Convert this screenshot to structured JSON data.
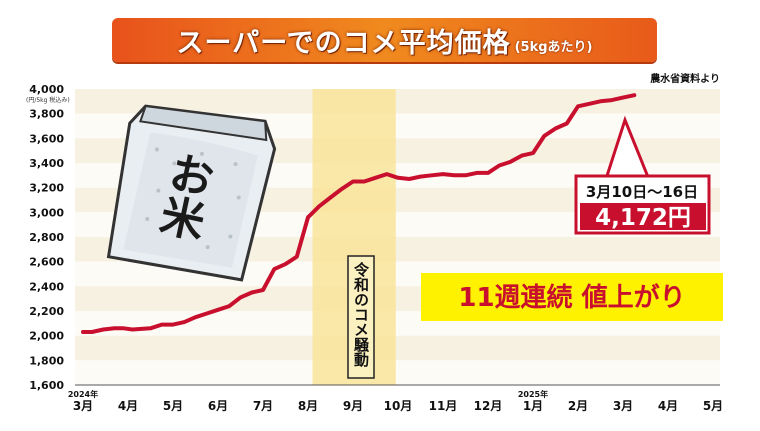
{
  "header": {
    "title": "スーパーでのコメ平均価格",
    "subtitle": "(5kgあたり)",
    "source": "農水省資料より"
  },
  "chart_data": {
    "type": "line",
    "ylim": [
      1600,
      4000
    ],
    "yticks": [
      "1,600",
      "1,800",
      "2,000",
      "2,200",
      "2,400",
      "2,600",
      "2,800",
      "3,000",
      "3,200",
      "3,400",
      "3,600",
      "3,800",
      "4,000"
    ],
    "ylabel": "(円/5kg 税込み)",
    "x_months": [
      "3月",
      "4月",
      "5月",
      "6月",
      "7月",
      "8月",
      "9月",
      "10月",
      "11月",
      "12月",
      "1月",
      "2月",
      "3月",
      "4月",
      "5月"
    ],
    "year_labels": [
      {
        "text": "2024年",
        "month_index": 0
      },
      {
        "text": "2025年",
        "month_index": 10
      }
    ],
    "grid": true,
    "x": [
      0.0,
      0.2,
      0.45,
      0.7,
      0.9,
      1.1,
      1.5,
      1.75,
      2.0,
      2.25,
      2.5,
      2.75,
      3.0,
      3.25,
      3.5,
      3.75,
      4.0,
      4.25,
      4.5,
      4.75,
      5.0,
      5.25,
      5.5,
      5.75,
      6.0,
      6.25,
      6.5,
      6.75,
      7.0,
      7.25,
      7.5,
      7.75,
      8.0,
      8.25,
      8.5,
      8.75,
      9.0,
      9.25,
      9.5,
      9.75,
      10.0,
      10.25,
      10.5,
      10.75,
      11.0,
      11.25,
      11.5,
      11.75,
      12.0,
      12.25
    ],
    "values": [
      2030,
      2030,
      2050,
      2060,
      2060,
      2050,
      2060,
      2090,
      2090,
      2110,
      2150,
      2180,
      2210,
      2240,
      2310,
      2350,
      2370,
      2540,
      2580,
      2640,
      2960,
      3050,
      3120,
      3190,
      3250,
      3250,
      3280,
      3310,
      3280,
      3270,
      3290,
      3300,
      3310,
      3300,
      3300,
      3320,
      3320,
      3380,
      3410,
      3460,
      3480,
      3620,
      3680,
      3720,
      3860,
      3880,
      3900,
      3910,
      3930,
      3950
    ],
    "shaded_period": {
      "from": 5.1,
      "to": 6.95,
      "label": "令和のコメ騒動"
    },
    "callout": {
      "date": "3月10日～16日",
      "value": "4,172円"
    },
    "banner": "11週連続 値上がり",
    "bag_label": "お米"
  }
}
